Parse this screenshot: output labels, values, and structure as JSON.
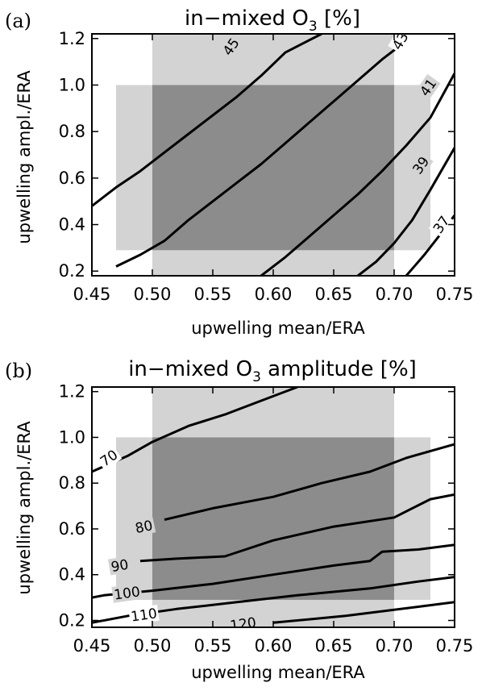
{
  "colors": {
    "light_region": "#d3d3d3",
    "dark_region": "#8c8c8c",
    "contour": "#000000"
  },
  "chart_data": [
    {
      "type": "contour",
      "panel": "(a)",
      "title_main": "in−mixed O",
      "title_sub": "3",
      "title_end": " [%]",
      "xlabel": "upwelling mean/ERA",
      "ylabel": "upwelling ampl./ERA",
      "xlim": [
        0.45,
        0.75
      ],
      "ylim": [
        0.18,
        1.22
      ],
      "xticks": [
        0.45,
        0.5,
        0.55,
        0.6,
        0.65,
        0.7,
        0.75
      ],
      "xtick_labels": [
        "0.45",
        "0.50",
        "0.55",
        "0.60",
        "0.65",
        "0.70",
        "0.75"
      ],
      "yticks": [
        0.2,
        0.4,
        0.6,
        0.8,
        1.0,
        1.2
      ],
      "ytick_labels": [
        "0.2",
        "0.4",
        "0.6",
        "0.8",
        "1.0",
        "1.2"
      ],
      "regions": [
        {
          "name": "light-vertical",
          "x": [
            0.5,
            0.7
          ],
          "y": [
            0.18,
            1.22
          ],
          "shade": "light"
        },
        {
          "name": "light-horizontal",
          "x": [
            0.47,
            0.73
          ],
          "y": [
            0.29,
            1.0
          ],
          "shade": "light"
        },
        {
          "name": "dark-overlap",
          "x": [
            0.5,
            0.7
          ],
          "y": [
            0.29,
            1.0
          ],
          "shade": "dark"
        }
      ],
      "contours": [
        {
          "level": "45",
          "label": "45",
          "label_at": [
            0.565,
            1.165
          ],
          "label_angle": -55,
          "points": [
            [
              0.45,
              0.48
            ],
            [
              0.47,
              0.56
            ],
            [
              0.49,
              0.63
            ],
            [
              0.51,
              0.71
            ],
            [
              0.53,
              0.79
            ],
            [
              0.55,
              0.87
            ],
            [
              0.57,
              0.95
            ],
            [
              0.59,
              1.04
            ],
            [
              0.61,
              1.14
            ],
            [
              0.64,
              1.22
            ]
          ]
        },
        {
          "level": "43",
          "label": "43",
          "label_at": [
            0.705,
            1.19
          ],
          "label_angle": -60,
          "points": [
            [
              0.47,
              0.22
            ],
            [
              0.49,
              0.27
            ],
            [
              0.51,
              0.33
            ],
            [
              0.53,
              0.42
            ],
            [
              0.55,
              0.5
            ],
            [
              0.57,
              0.58
            ],
            [
              0.59,
              0.66
            ],
            [
              0.61,
              0.75
            ],
            [
              0.63,
              0.84
            ],
            [
              0.65,
              0.93
            ],
            [
              0.67,
              1.02
            ],
            [
              0.69,
              1.11
            ],
            [
              0.705,
              1.17
            ]
          ]
        },
        {
          "level": "41",
          "label": "41",
          "label_at": [
            0.728,
            0.99
          ],
          "label_angle": -55,
          "points": [
            [
              0.59,
              0.18
            ],
            [
              0.61,
              0.26
            ],
            [
              0.63,
              0.35
            ],
            [
              0.65,
              0.44
            ],
            [
              0.67,
              0.53
            ],
            [
              0.69,
              0.63
            ],
            [
              0.71,
              0.74
            ],
            [
              0.73,
              0.86
            ],
            [
              0.75,
              1.05
            ]
          ]
        },
        {
          "level": "39",
          "label": "39",
          "label_at": [
            0.722,
            0.655
          ],
          "label_angle": -55,
          "points": [
            [
              0.67,
              0.18
            ],
            [
              0.685,
              0.24
            ],
            [
              0.7,
              0.32
            ],
            [
              0.715,
              0.42
            ],
            [
              0.73,
              0.55
            ],
            [
              0.75,
              0.73
            ]
          ]
        },
        {
          "level": "37",
          "label": "37",
          "label_at": [
            0.739,
            0.4
          ],
          "label_angle": -55,
          "points": [
            [
              0.71,
              0.18
            ],
            [
              0.725,
              0.27
            ],
            [
              0.74,
              0.37
            ],
            [
              0.75,
              0.44
            ]
          ]
        }
      ]
    },
    {
      "type": "contour",
      "panel": "(b)",
      "title_main": "in−mixed O",
      "title_sub": "3",
      "title_end": " amplitude [%]",
      "xlabel": "upwelling mean/ERA",
      "ylabel": "upwelling ampl./ERA",
      "xlim": [
        0.45,
        0.75
      ],
      "ylim": [
        0.17,
        1.22
      ],
      "xticks": [
        0.45,
        0.5,
        0.55,
        0.6,
        0.65,
        0.7,
        0.75
      ],
      "xtick_labels": [
        "0.45",
        "0.50",
        "0.55",
        "0.60",
        "0.65",
        "0.70",
        "0.75"
      ],
      "yticks": [
        0.2,
        0.4,
        0.6,
        0.8,
        1.0,
        1.2
      ],
      "ytick_labels": [
        "0.2",
        "0.4",
        "0.6",
        "0.8",
        "1.0",
        "1.2"
      ],
      "regions": [
        {
          "name": "light-vertical",
          "x": [
            0.5,
            0.7
          ],
          "y": [
            0.17,
            1.22
          ],
          "shade": "light"
        },
        {
          "name": "light-horizontal",
          "x": [
            0.47,
            0.73
          ],
          "y": [
            0.29,
            1.0
          ],
          "shade": "light"
        },
        {
          "name": "dark-overlap",
          "x": [
            0.5,
            0.7
          ],
          "y": [
            0.29,
            1.0
          ],
          "shade": "dark"
        }
      ],
      "contours": [
        {
          "level": "70",
          "label": "70",
          "label_at": [
            0.464,
            0.91
          ],
          "label_angle": -35,
          "points": [
            [
              0.45,
              0.85
            ],
            [
              0.48,
              0.92
            ],
            [
              0.5,
              0.98
            ],
            [
              0.53,
              1.05
            ],
            [
              0.56,
              1.1
            ],
            [
              0.59,
              1.16
            ],
            [
              0.62,
              1.22
            ]
          ]
        },
        {
          "level": "80",
          "label": "80",
          "label_at": [
            0.493,
            0.61
          ],
          "label_angle": -12,
          "points": [
            [
              0.51,
              0.64
            ],
            [
              0.55,
              0.69
            ],
            [
              0.6,
              0.74
            ],
            [
              0.64,
              0.8
            ],
            [
              0.68,
              0.85
            ],
            [
              0.71,
              0.91
            ],
            [
              0.75,
              0.97
            ]
          ]
        },
        {
          "level": "90",
          "label": "90",
          "label_at": [
            0.473,
            0.44
          ],
          "label_angle": -10,
          "points": [
            [
              0.49,
              0.46
            ],
            [
              0.52,
              0.47
            ],
            [
              0.56,
              0.48
            ],
            [
              0.6,
              0.55
            ],
            [
              0.65,
              0.61
            ],
            [
              0.7,
              0.65
            ],
            [
              0.73,
              0.73
            ],
            [
              0.75,
              0.75
            ]
          ]
        },
        {
          "level": "100",
          "label": "100",
          "label_at": [
            0.479,
            0.32
          ],
          "label_angle": -8,
          "points": [
            [
              0.45,
              0.3
            ],
            [
              0.46,
              0.31
            ],
            [
              0.5,
              0.33
            ],
            [
              0.55,
              0.36
            ],
            [
              0.6,
              0.4
            ],
            [
              0.65,
              0.44
            ],
            [
              0.68,
              0.46
            ],
            [
              0.69,
              0.5
            ],
            [
              0.72,
              0.51
            ],
            [
              0.75,
              0.53
            ]
          ]
        },
        {
          "level": "110",
          "label": "110",
          "label_at": [
            0.493,
            0.225
          ],
          "label_angle": -8,
          "points": [
            [
              0.45,
              0.19
            ],
            [
              0.48,
              0.22
            ],
            [
              0.52,
              0.25
            ],
            [
              0.57,
              0.28
            ],
            [
              0.62,
              0.31
            ],
            [
              0.68,
              0.34
            ],
            [
              0.72,
              0.37
            ],
            [
              0.75,
              0.39
            ]
          ]
        },
        {
          "level": "120",
          "label": "120",
          "label_at": [
            0.575,
            0.185
          ],
          "label_angle": -8,
          "points": [
            [
              0.6,
              0.19
            ],
            [
              0.66,
              0.22
            ],
            [
              0.72,
              0.26
            ],
            [
              0.75,
              0.28
            ]
          ]
        }
      ]
    }
  ]
}
